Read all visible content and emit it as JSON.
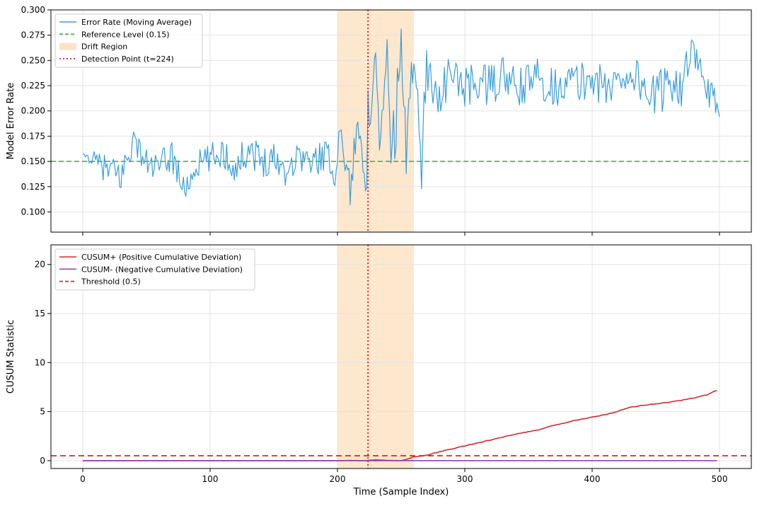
{
  "chart_data": [
    {
      "type": "line",
      "title": "",
      "xlabel": "",
      "ylabel": "Model Error Rate",
      "xlim": [
        -25,
        525
      ],
      "ylim": [
        0.08,
        0.3
      ],
      "xticks": [
        0,
        100,
        200,
        300,
        400,
        500
      ],
      "yticks": [
        0.1,
        0.125,
        0.15,
        0.175,
        0.2,
        0.225,
        0.25,
        0.275,
        0.3
      ],
      "ytick_labels": [
        "0.100",
        "0.125",
        "0.150",
        "0.175",
        "0.200",
        "0.225",
        "0.250",
        "0.275",
        "0.300"
      ],
      "grid": true,
      "legend_position": "top-left",
      "series": [
        {
          "name": "Error Rate (Moving Average)",
          "color": "#3a9ee0",
          "x": [
            0,
            10,
            20,
            30,
            40,
            50,
            60,
            70,
            80,
            90,
            100,
            110,
            120,
            130,
            140,
            150,
            160,
            170,
            180,
            190,
            198,
            202,
            206,
            210,
            214,
            218,
            221,
            223,
            224,
            226,
            230,
            234,
            238,
            242,
            246,
            250,
            254,
            258,
            262,
            266,
            270,
            275,
            280,
            290,
            300,
            310,
            320,
            330,
            340,
            350,
            360,
            370,
            380,
            390,
            400,
            410,
            420,
            430,
            440,
            450,
            460,
            470,
            480,
            490,
            495,
            500
          ],
          "y": [
            0.157,
            0.15,
            0.141,
            0.135,
            0.172,
            0.148,
            0.143,
            0.158,
            0.12,
            0.147,
            0.152,
            0.16,
            0.142,
            0.165,
            0.15,
            0.155,
            0.14,
            0.158,
            0.147,
            0.16,
            0.137,
            0.18,
            0.155,
            0.122,
            0.165,
            0.205,
            0.145,
            0.115,
            0.22,
            0.16,
            0.248,
            0.152,
            0.27,
            0.155,
            0.195,
            0.26,
            0.15,
            0.275,
            0.21,
            0.15,
            0.245,
            0.225,
            0.215,
            0.238,
            0.222,
            0.23,
            0.224,
            0.236,
            0.22,
            0.228,
            0.234,
            0.222,
            0.231,
            0.226,
            0.235,
            0.221,
            0.23,
            0.24,
            0.225,
            0.212,
            0.232,
            0.228,
            0.252,
            0.22,
            0.212,
            0.194
          ],
          "noise": [
            0.0,
            0.01,
            0.015,
            0.018,
            0.012,
            0.015,
            0.014,
            0.02,
            0.01,
            0.014,
            0.016,
            0.016,
            0.014,
            0.018,
            0.016,
            0.017,
            0.015,
            0.016,
            0.014,
            0.018,
            0.012,
            0.015,
            0.02,
            0.018,
            0.02,
            0.03,
            0.022,
            0.01,
            0.0,
            0.03,
            0.035,
            0.025,
            0.03,
            0.03,
            0.035,
            0.035,
            0.03,
            0.035,
            0.03,
            0.03,
            0.025,
            0.02,
            0.022,
            0.02,
            0.02,
            0.022,
            0.02,
            0.02,
            0.022,
            0.02,
            0.022,
            0.02,
            0.02,
            0.022,
            0.022,
            0.02,
            0.022,
            0.024,
            0.022,
            0.022,
            0.024,
            0.024,
            0.026,
            0.02,
            0.018,
            0.0
          ]
        },
        {
          "name": "Reference Level (0.15)",
          "kind": "hline",
          "color": "#4caf50",
          "y": 0.15
        }
      ],
      "shaded_regions": [
        {
          "name": "Drift Region",
          "x_start": 200,
          "x_end": 260,
          "color": "#fde3c4"
        }
      ],
      "vlines": [
        {
          "name": "Detection Point (t=224)",
          "x": 224,
          "color": "#d62728"
        }
      ]
    },
    {
      "type": "line",
      "title": "",
      "xlabel": "Time (Sample Index)",
      "ylabel": "CUSUM Statistic",
      "xlim": [
        -25,
        525
      ],
      "ylim": [
        -0.8,
        22
      ],
      "xticks": [
        0,
        100,
        200,
        300,
        400,
        500
      ],
      "yticks": [
        0,
        5,
        10,
        15,
        20
      ],
      "ytick_labels": [
        "0",
        "5",
        "10",
        "15",
        "20"
      ],
      "grid": true,
      "legend_position": "top-left",
      "series": [
        {
          "name": "CUSUM+ (Positive Cumulative Deviation)",
          "color": "#d62728",
          "x": [
            0,
            200,
            210,
            220,
            230,
            240,
            250,
            256,
            260,
            265,
            270,
            280,
            290,
            300,
            310,
            320,
            330,
            340,
            350,
            360,
            370,
            380,
            390,
            400,
            410,
            420,
            425,
            430,
            440,
            450,
            460,
            470,
            480,
            490,
            495,
            499
          ],
          "y": [
            0,
            0,
            0.02,
            0.0,
            0.08,
            0.03,
            0.0,
            0.2,
            0.38,
            0.45,
            0.55,
            0.9,
            1.2,
            1.5,
            1.8,
            2.1,
            2.4,
            2.7,
            2.95,
            3.2,
            3.6,
            3.9,
            4.2,
            4.45,
            4.7,
            5.0,
            5.25,
            5.45,
            5.65,
            5.8,
            5.95,
            6.15,
            6.4,
            6.7,
            7.05,
            7.15
          ]
        },
        {
          "name": "CUSUM- (Negative Cumulative Deviation)",
          "color": "#8e44ad",
          "x": [
            0,
            499
          ],
          "y": [
            0,
            0
          ]
        },
        {
          "name": "Threshold (0.5)",
          "kind": "hline",
          "color": "#d62728",
          "y": 0.5
        }
      ],
      "shaded_regions": [
        {
          "name": "",
          "x_start": 200,
          "x_end": 260,
          "color": "#fde3c4"
        }
      ],
      "vlines": [
        {
          "name": "",
          "x": 224,
          "color": "#d62728"
        }
      ]
    }
  ]
}
